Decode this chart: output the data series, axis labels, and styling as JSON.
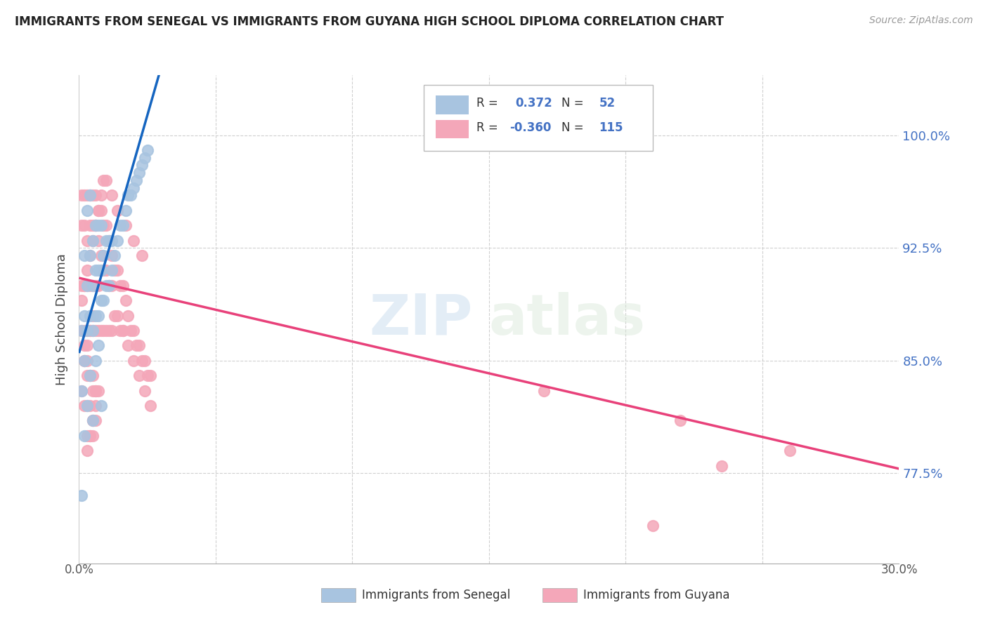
{
  "title": "IMMIGRANTS FROM SENEGAL VS IMMIGRANTS FROM GUYANA HIGH SCHOOL DIPLOMA CORRELATION CHART",
  "source": "Source: ZipAtlas.com",
  "ylabel": "High School Diploma",
  "legend_label1": "Immigrants from Senegal",
  "legend_label2": "Immigrants from Guyana",
  "R1": "0.372",
  "N1": "52",
  "R2": "-0.360",
  "N2": "115",
  "color1": "#a8c4e0",
  "color2": "#f4a7b9",
  "trendline1_color": "#1565c0",
  "trendline2_color": "#e8417a",
  "watermark_zip": "ZIP",
  "watermark_atlas": "atlas",
  "xlim": [
    0.0,
    0.3
  ],
  "ylim": [
    0.715,
    1.04
  ],
  "ylabel_ticks": [
    0.775,
    0.85,
    0.925,
    1.0
  ],
  "ylabel_labels": [
    "77.5%",
    "85.0%",
    "92.5%",
    "100.0%"
  ],
  "xtick_positions": [
    0.0,
    0.05,
    0.1,
    0.15,
    0.2,
    0.25,
    0.3
  ],
  "senegal_x": [
    0.001,
    0.001,
    0.002,
    0.002,
    0.002,
    0.003,
    0.003,
    0.003,
    0.004,
    0.004,
    0.004,
    0.005,
    0.005,
    0.005,
    0.006,
    0.006,
    0.006,
    0.007,
    0.007,
    0.007,
    0.008,
    0.008,
    0.008,
    0.009,
    0.009,
    0.01,
    0.01,
    0.011,
    0.011,
    0.012,
    0.012,
    0.013,
    0.014,
    0.015,
    0.016,
    0.017,
    0.018,
    0.019,
    0.02,
    0.021,
    0.022,
    0.023,
    0.024,
    0.025,
    0.001,
    0.002,
    0.003,
    0.004,
    0.005,
    0.006,
    0.007,
    0.008
  ],
  "senegal_y": [
    0.83,
    0.87,
    0.85,
    0.88,
    0.92,
    0.87,
    0.9,
    0.95,
    0.88,
    0.92,
    0.96,
    0.87,
    0.9,
    0.93,
    0.88,
    0.91,
    0.94,
    0.88,
    0.91,
    0.94,
    0.89,
    0.91,
    0.94,
    0.89,
    0.92,
    0.9,
    0.93,
    0.9,
    0.93,
    0.91,
    0.93,
    0.92,
    0.93,
    0.94,
    0.94,
    0.95,
    0.96,
    0.96,
    0.965,
    0.97,
    0.975,
    0.98,
    0.985,
    0.99,
    0.76,
    0.8,
    0.82,
    0.84,
    0.81,
    0.85,
    0.86,
    0.82
  ],
  "guyana_x": [
    0.001,
    0.001,
    0.001,
    0.002,
    0.002,
    0.002,
    0.002,
    0.003,
    0.003,
    0.003,
    0.003,
    0.004,
    0.004,
    0.004,
    0.004,
    0.005,
    0.005,
    0.005,
    0.005,
    0.006,
    0.006,
    0.006,
    0.006,
    0.007,
    0.007,
    0.007,
    0.007,
    0.008,
    0.008,
    0.008,
    0.009,
    0.009,
    0.009,
    0.01,
    0.01,
    0.01,
    0.011,
    0.011,
    0.011,
    0.012,
    0.012,
    0.012,
    0.013,
    0.013,
    0.014,
    0.014,
    0.015,
    0.015,
    0.016,
    0.016,
    0.017,
    0.018,
    0.019,
    0.02,
    0.021,
    0.022,
    0.023,
    0.024,
    0.025,
    0.026,
    0.001,
    0.002,
    0.003,
    0.004,
    0.005,
    0.006,
    0.001,
    0.002,
    0.003,
    0.004,
    0.005,
    0.006,
    0.003,
    0.004,
    0.005,
    0.003,
    0.004,
    0.005,
    0.006,
    0.002,
    0.003,
    0.004,
    0.005,
    0.006,
    0.007,
    0.002,
    0.003,
    0.004,
    0.005,
    0.001,
    0.002,
    0.003,
    0.004,
    0.005,
    0.006,
    0.007,
    0.008,
    0.009,
    0.01,
    0.012,
    0.014,
    0.017,
    0.02,
    0.023,
    0.016,
    0.018,
    0.02,
    0.022,
    0.024,
    0.026,
    0.17,
    0.22,
    0.26,
    0.235,
    0.21
  ],
  "guyana_y": [
    0.96,
    0.94,
    0.89,
    0.96,
    0.94,
    0.9,
    0.87,
    0.96,
    0.93,
    0.9,
    0.87,
    0.96,
    0.94,
    0.9,
    0.87,
    0.96,
    0.94,
    0.9,
    0.87,
    0.96,
    0.94,
    0.9,
    0.87,
    0.95,
    0.93,
    0.9,
    0.87,
    0.95,
    0.92,
    0.87,
    0.94,
    0.91,
    0.87,
    0.94,
    0.91,
    0.87,
    0.93,
    0.9,
    0.87,
    0.92,
    0.9,
    0.87,
    0.91,
    0.88,
    0.91,
    0.88,
    0.9,
    0.87,
    0.9,
    0.87,
    0.89,
    0.88,
    0.87,
    0.87,
    0.86,
    0.86,
    0.85,
    0.85,
    0.84,
    0.84,
    0.87,
    0.85,
    0.84,
    0.84,
    0.83,
    0.83,
    0.83,
    0.82,
    0.82,
    0.82,
    0.81,
    0.81,
    0.8,
    0.8,
    0.8,
    0.79,
    0.8,
    0.81,
    0.82,
    0.85,
    0.85,
    0.84,
    0.84,
    0.83,
    0.83,
    0.86,
    0.86,
    0.87,
    0.88,
    0.9,
    0.9,
    0.91,
    0.92,
    0.93,
    0.94,
    0.95,
    0.96,
    0.97,
    0.97,
    0.96,
    0.95,
    0.94,
    0.93,
    0.92,
    0.87,
    0.86,
    0.85,
    0.84,
    0.83,
    0.82,
    0.83,
    0.81,
    0.79,
    0.78,
    0.74
  ],
  "trendline1_x": [
    0.0,
    0.03
  ],
  "trendline1_y": [
    0.855,
    1.045
  ],
  "trendline2_x": [
    0.0,
    0.3
  ],
  "trendline2_y": [
    0.905,
    0.778
  ]
}
